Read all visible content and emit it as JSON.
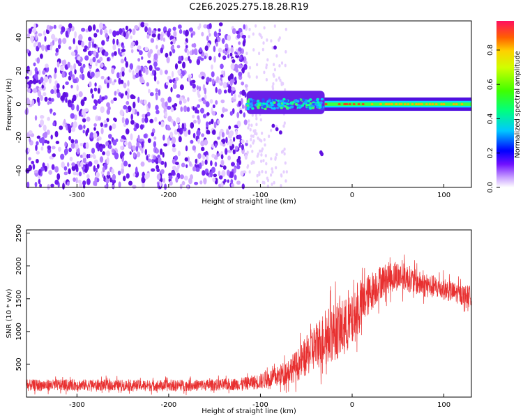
{
  "title": "C2E6.2025.275.18.28.R19",
  "chart_data": [
    {
      "type": "heatmap",
      "xlabel": "Height of straight line (km)",
      "ylabel": "Frequency (Hz)",
      "xlim": [
        -355,
        130
      ],
      "ylim": [
        -50,
        50
      ],
      "x_ticks": [
        -300,
        -200,
        -100,
        0,
        100
      ],
      "y_ticks": [
        -40,
        -20,
        0,
        20,
        40
      ],
      "colorbar": {
        "label": "Normalized spectral amplitude",
        "range": [
          0,
          0.97
        ],
        "ticks": [
          0.0,
          0.2,
          0.4,
          0.6,
          0.8
        ]
      },
      "regions": [
        {
          "x_range": [
            -355,
            -115
          ],
          "freq_range": [
            -50,
            48
          ],
          "amplitude": [
            0.05,
            0.2
          ],
          "pattern": "broadband noise"
        },
        {
          "x_range": [
            -115,
            -30
          ],
          "freq_range": [
            -6,
            8
          ],
          "amplitude": [
            0.2,
            0.45
          ],
          "pattern": "signal band"
        },
        {
          "x_range": [
            -30,
            130
          ],
          "freq_range": [
            -2,
            2
          ],
          "amplitude": [
            0.5,
            0.9
          ],
          "pattern": "narrow line near 0 Hz"
        }
      ],
      "grid": false
    },
    {
      "type": "line",
      "xlabel": "Height of straight line (km)",
      "ylabel": "SNR (10 * v/v)",
      "xlim": [
        -355,
        130
      ],
      "ylim": [
        0,
        2550
      ],
      "x_ticks": [
        -300,
        -200,
        -100,
        0,
        100
      ],
      "y_ticks": [
        500,
        1000,
        1500,
        2000,
        2500
      ],
      "series": [
        {
          "color": "#e83030",
          "x": [
            -355,
            -300,
            -250,
            -200,
            -150,
            -120,
            -100,
            -80,
            -60,
            -50,
            -40,
            -30,
            -20,
            -10,
            0,
            10,
            20,
            30,
            40,
            50,
            60,
            70,
            80,
            90,
            100,
            110,
            120,
            130
          ],
          "y": [
            180,
            185,
            180,
            175,
            185,
            200,
            240,
            320,
            480,
            620,
            780,
            900,
            1000,
            1050,
            1150,
            1400,
            1600,
            1750,
            1820,
            1850,
            1820,
            1750,
            1700,
            1680,
            1650,
            1600,
            1560,
            1550
          ],
          "spread": [
            110,
            110,
            105,
            105,
            110,
            120,
            150,
            200,
            300,
            380,
            460,
            520,
            560,
            560,
            500,
            450,
            380,
            330,
            300,
            280,
            260,
            240,
            230,
            220,
            210,
            200,
            190,
            190
          ]
        }
      ],
      "grid": false
    }
  ]
}
